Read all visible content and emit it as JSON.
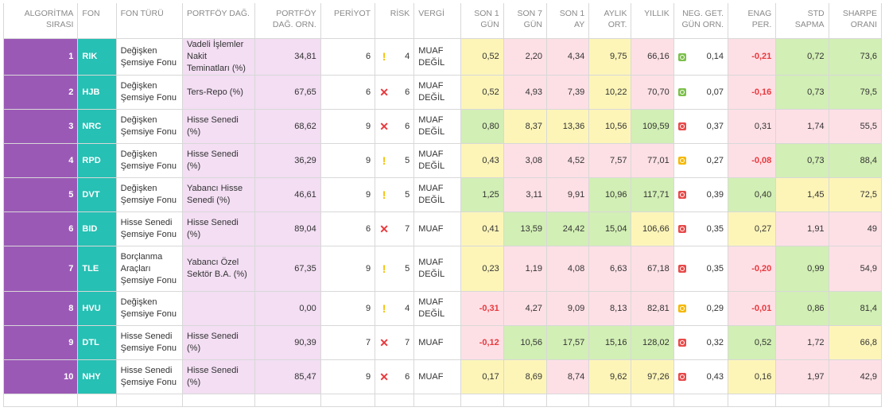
{
  "headers": {
    "rank": [
      "ALGORİTMA",
      "SIRASI"
    ],
    "fund": [
      "FON"
    ],
    "fund_type": [
      "FON TÜRÜ"
    ],
    "portfolio": [
      "PORTFÖY DAĞ."
    ],
    "portfolio_avg": [
      "PORTFÖY",
      "DAĞ. ORN."
    ],
    "period": [
      "PERİYOT"
    ],
    "risk": [
      "RİSK"
    ],
    "tax": [
      "VERGİ"
    ],
    "d1": [
      "SON 1",
      "GÜN"
    ],
    "d7": [
      "SON 7",
      "GÜN"
    ],
    "m1": [
      "SON 1",
      "AY"
    ],
    "monthly": [
      "AYLIK",
      "ORT."
    ],
    "annual": [
      "YILLIK"
    ],
    "neg": [
      "NEG. GET.",
      "GÜN ORN."
    ],
    "enag": [
      "ENAG",
      "PER."
    ],
    "std": [
      "STD",
      "SAPMA"
    ],
    "sharpe": [
      "SHARPE",
      "ORANI"
    ]
  },
  "colors": {
    "rank_bg": "#9b59b6",
    "code_bg": "#26c0b4",
    "portfolio_bg": "#f3def3",
    "yellow": "#fdf5b8",
    "red": "#fde0e6",
    "green": "#d2efb5",
    "dot_green": "#7cc04b",
    "dot_red": "#e84a4a",
    "dot_yellow": "#f5b800",
    "neg_text": "#e8393d"
  },
  "rows": [
    {
      "rank": "1",
      "code": "RIK",
      "type": "Değişken Şemsiye Fonu",
      "portfolio": "Vadeli İşlemler Nakit Teminatları (%)",
      "pf_avg": "34,81",
      "period": "6",
      "risk_icon": "warning-icon",
      "risk": "4",
      "tax": "MUAF DEĞİL",
      "d1": "0,52",
      "d7": "2,20",
      "m1": "4,34",
      "monthly": "9,75",
      "annual": "66,16",
      "neg_dot": "green",
      "neg": "0,14",
      "enag": "-0,21",
      "std": "0,72",
      "sharpe": "73,6",
      "c": {
        "d1": "cy",
        "d7": "cr",
        "m1": "cr",
        "monthly": "cy",
        "annual": "cr",
        "neg": "cw",
        "enag": "cr",
        "std": "cg",
        "sharpe": "cg"
      }
    },
    {
      "rank": "2",
      "code": "HJB",
      "type": "Değişken Şemsiye Fonu",
      "portfolio": "Ters-Repo (%)",
      "pf_avg": "67,65",
      "period": "6",
      "risk_icon": "cross-icon",
      "risk": "6",
      "tax": "MUAF DEĞİL",
      "d1": "0,52",
      "d7": "4,93",
      "m1": "7,39",
      "monthly": "10,22",
      "annual": "70,70",
      "neg_dot": "green",
      "neg": "0,07",
      "enag": "-0,16",
      "std": "0,73",
      "sharpe": "79,5",
      "c": {
        "d1": "cy",
        "d7": "cr",
        "m1": "cr",
        "monthly": "cy",
        "annual": "cr",
        "neg": "cw",
        "enag": "cr",
        "std": "cg",
        "sharpe": "cg"
      }
    },
    {
      "rank": "3",
      "code": "NRC",
      "type": "Değişken Şemsiye Fonu",
      "portfolio": "Hisse Senedi (%)",
      "pf_avg": "68,62",
      "period": "9",
      "risk_icon": "cross-icon",
      "risk": "6",
      "tax": "MUAF DEĞİL",
      "d1": "0,80",
      "d7": "8,37",
      "m1": "13,36",
      "monthly": "10,56",
      "annual": "109,59",
      "neg_dot": "red",
      "neg": "0,37",
      "enag": "0,31",
      "std": "1,74",
      "sharpe": "55,5",
      "c": {
        "d1": "cg",
        "d7": "cy",
        "m1": "cy",
        "monthly": "cy",
        "annual": "cg",
        "neg": "cw",
        "enag": "cr",
        "std": "cr",
        "sharpe": "cr"
      }
    },
    {
      "rank": "4",
      "code": "RPD",
      "type": "Değişken Şemsiye Fonu",
      "portfolio": "Hisse Senedi (%)",
      "pf_avg": "36,29",
      "period": "9",
      "risk_icon": "warning-icon",
      "risk": "5",
      "tax": "MUAF DEĞİL",
      "d1": "0,43",
      "d7": "3,08",
      "m1": "4,52",
      "monthly": "7,57",
      "annual": "77,01",
      "neg_dot": "yellow",
      "neg": "0,27",
      "enag": "-0,08",
      "std": "0,73",
      "sharpe": "88,4",
      "c": {
        "d1": "cy",
        "d7": "cr",
        "m1": "cr",
        "monthly": "cr",
        "annual": "cr",
        "neg": "cw",
        "enag": "cr",
        "std": "cg",
        "sharpe": "cg"
      }
    },
    {
      "rank": "5",
      "code": "DVT",
      "type": "Değişken Şemsiye Fonu",
      "portfolio": "Yabancı Hisse Senedi (%)",
      "pf_avg": "46,61",
      "period": "9",
      "risk_icon": "warning-icon",
      "risk": "5",
      "tax": "MUAF DEĞİL",
      "d1": "1,25",
      "d7": "3,11",
      "m1": "9,91",
      "monthly": "10,96",
      "annual": "117,71",
      "neg_dot": "red",
      "neg": "0,39",
      "enag": "0,40",
      "std": "1,45",
      "sharpe": "72,5",
      "c": {
        "d1": "cg",
        "d7": "cr",
        "m1": "cr",
        "monthly": "cg",
        "annual": "cg",
        "neg": "cw",
        "enag": "cg",
        "std": "cy",
        "sharpe": "cy"
      }
    },
    {
      "rank": "6",
      "code": "BID",
      "type": "Hisse Senedi Şemsiye Fonu",
      "portfolio": "Hisse Senedi (%)",
      "pf_avg": "89,04",
      "period": "6",
      "risk_icon": "cross-icon",
      "risk": "7",
      "tax": "MUAF",
      "d1": "0,41",
      "d7": "13,59",
      "m1": "24,42",
      "monthly": "15,04",
      "annual": "106,66",
      "neg_dot": "red",
      "neg": "0,35",
      "enag": "0,27",
      "std": "1,91",
      "sharpe": "49",
      "c": {
        "d1": "cy",
        "d7": "cg",
        "m1": "cg",
        "monthly": "cg",
        "annual": "cy",
        "neg": "cw",
        "enag": "cy",
        "std": "cr",
        "sharpe": "cr"
      }
    },
    {
      "rank": "7",
      "code": "TLE",
      "type": "Borçlanma Araçları Şemsiye Fonu",
      "portfolio": "Yabancı Özel Sektör B.A. (%)",
      "pf_avg": "67,35",
      "period": "9",
      "risk_icon": "warning-icon",
      "risk": "5",
      "tax": "MUAF DEĞİL",
      "d1": "0,23",
      "d7": "1,19",
      "m1": "4,08",
      "monthly": "6,63",
      "annual": "67,18",
      "neg_dot": "red",
      "neg": "0,35",
      "enag": "-0,20",
      "std": "0,99",
      "sharpe": "54,9",
      "c": {
        "d1": "cy",
        "d7": "cr",
        "m1": "cr",
        "monthly": "cr",
        "annual": "cr",
        "neg": "cw",
        "enag": "cr",
        "std": "cg",
        "sharpe": "cr"
      }
    },
    {
      "rank": "8",
      "code": "HVU",
      "type": "Değişken Şemsiye Fonu",
      "portfolio": "",
      "pf_avg": "0,00",
      "period": "9",
      "risk_icon": "warning-icon",
      "risk": "4",
      "tax": "MUAF DEĞİL",
      "d1": "-0,31",
      "d7": "4,27",
      "m1": "9,09",
      "monthly": "8,13",
      "annual": "82,81",
      "neg_dot": "yellow",
      "neg": "0,29",
      "enag": "-0,01",
      "std": "0,86",
      "sharpe": "81,4",
      "c": {
        "d1": "cr",
        "d7": "cr",
        "m1": "cr",
        "monthly": "cr",
        "annual": "cr",
        "neg": "cw",
        "enag": "cr",
        "std": "cg",
        "sharpe": "cg"
      }
    },
    {
      "rank": "9",
      "code": "DTL",
      "type": "Hisse Senedi Şemsiye Fonu",
      "portfolio": "Hisse Senedi (%)",
      "pf_avg": "90,39",
      "period": "7",
      "risk_icon": "cross-icon",
      "risk": "7",
      "tax": "MUAF",
      "d1": "-0,12",
      "d7": "10,56",
      "m1": "17,57",
      "monthly": "15,16",
      "annual": "128,02",
      "neg_dot": "red",
      "neg": "0,32",
      "enag": "0,52",
      "std": "1,72",
      "sharpe": "66,8",
      "c": {
        "d1": "cr",
        "d7": "cg",
        "m1": "cg",
        "monthly": "cg",
        "annual": "cg",
        "neg": "cw",
        "enag": "cg",
        "std": "cr",
        "sharpe": "cy"
      }
    },
    {
      "rank": "10",
      "code": "NHY",
      "type": "Hisse Senedi Şemsiye Fonu",
      "portfolio": "Hisse Senedi (%)",
      "pf_avg": "85,47",
      "period": "9",
      "risk_icon": "cross-icon",
      "risk": "6",
      "tax": "MUAF",
      "d1": "0,17",
      "d7": "8,69",
      "m1": "8,74",
      "monthly": "9,62",
      "annual": "97,26",
      "neg_dot": "red",
      "neg": "0,43",
      "enag": "0,16",
      "std": "1,97",
      "sharpe": "42,9",
      "c": {
        "d1": "cy",
        "d7": "cy",
        "m1": "cr",
        "monthly": "cy",
        "annual": "cy",
        "neg": "cw",
        "enag": "cy",
        "std": "cr",
        "sharpe": "cr"
      }
    }
  ]
}
